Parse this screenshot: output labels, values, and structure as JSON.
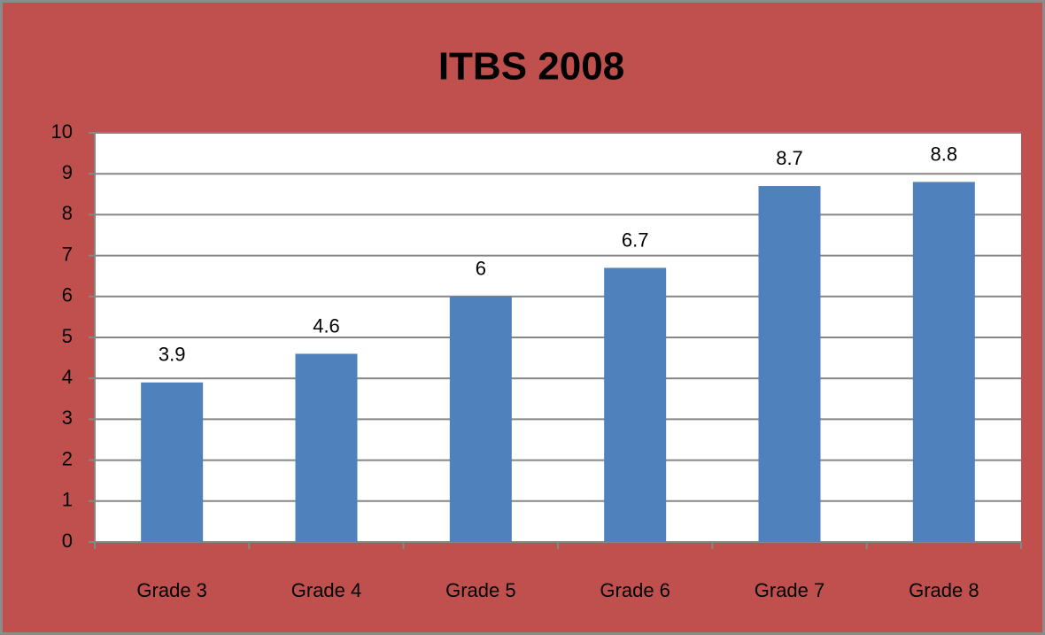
{
  "chart_data": {
    "type": "bar",
    "title": "ITBS 2008",
    "categories": [
      "Grade 3",
      "Grade 4",
      "Grade 5",
      "Grade 6",
      "Grade 7",
      "Grade 8"
    ],
    "values": [
      3.9,
      4.6,
      6,
      6.7,
      8.7,
      8.8
    ],
    "color": "#4f81bd",
    "ylim": [
      0,
      10
    ],
    "yticks": [
      0,
      1,
      2,
      3,
      4,
      5,
      6,
      7,
      8,
      9,
      10
    ],
    "grid": true
  }
}
